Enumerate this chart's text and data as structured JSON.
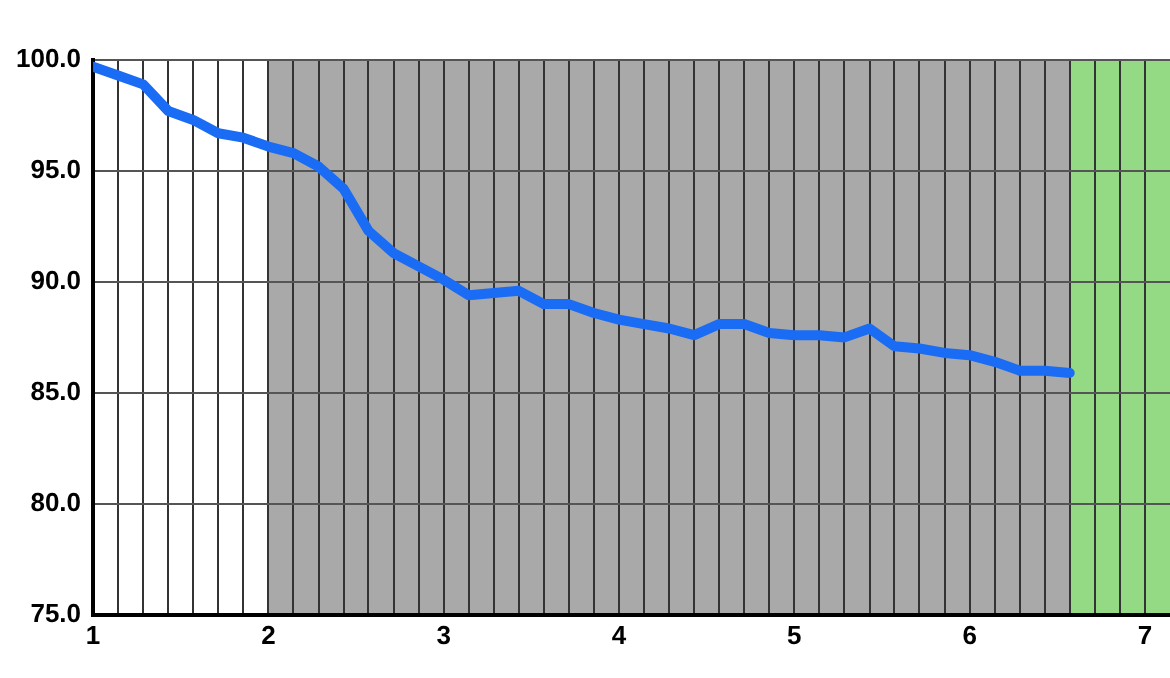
{
  "chart_data": {
    "type": "line",
    "x": [
      1,
      1.143,
      1.286,
      1.429,
      1.571,
      1.714,
      1.857,
      2,
      2.143,
      2.286,
      2.429,
      2.571,
      2.714,
      2.857,
      3,
      3.143,
      3.286,
      3.429,
      3.571,
      3.714,
      3.857,
      4,
      4.143,
      4.286,
      4.429,
      4.571,
      4.714,
      4.857,
      5,
      5.143,
      5.286,
      5.429,
      5.571,
      5.714,
      5.857,
      6,
      6.143,
      6.286,
      6.429,
      6.571
    ],
    "series": [
      {
        "color": "#1a6cf5",
        "values": [
          99.7,
          99.3,
          98.9,
          97.7,
          97.3,
          96.7,
          96.5,
          96.1,
          95.8,
          95.2,
          94.2,
          92.3,
          91.3,
          90.7,
          90.1,
          89.4,
          89.5,
          89.6,
          89.0,
          89.0,
          88.6,
          88.3,
          88.1,
          87.9,
          87.6,
          88.1,
          88.1,
          87.7,
          87.6,
          87.6,
          87.5,
          87.9,
          87.1,
          87.0,
          86.8,
          86.7,
          86.4,
          86.0,
          86.0,
          85.9
        ]
      }
    ],
    "xlim": [
      1,
      7.143
    ],
    "xticks": [
      1,
      {
        "value": 1.143,
        "label": null
      },
      {
        "value": 1.286,
        "label": null
      },
      {
        "value": 1.429,
        "label": null
      },
      {
        "value": 1.571,
        "label": null
      },
      {
        "value": 1.714,
        "label": null
      },
      {
        "value": 1.857,
        "label": null
      },
      2,
      {
        "value": 2.143,
        "label": null
      },
      {
        "value": 2.286,
        "label": null
      },
      {
        "value": 2.429,
        "label": null
      },
      {
        "value": 2.571,
        "label": null
      },
      {
        "value": 2.714,
        "label": null
      },
      {
        "value": 2.857,
        "label": null
      },
      3,
      {
        "value": 3.143,
        "label": null
      },
      {
        "value": 3.286,
        "label": null
      },
      {
        "value": 3.429,
        "label": null
      },
      {
        "value": 3.571,
        "label": null
      },
      {
        "value": 3.714,
        "label": null
      },
      {
        "value": 3.857,
        "label": null
      },
      4,
      {
        "value": 4.143,
        "label": null
      },
      {
        "value": 4.286,
        "label": null
      },
      {
        "value": 4.429,
        "label": null
      },
      {
        "value": 4.571,
        "label": null
      },
      {
        "value": 4.714,
        "label": null
      },
      {
        "value": 4.857,
        "label": null
      },
      5,
      {
        "value": 5.143,
        "label": null
      },
      {
        "value": 5.286,
        "label": null
      },
      {
        "value": 5.429,
        "label": null
      },
      {
        "value": 5.571,
        "label": null
      },
      {
        "value": 5.714,
        "label": null
      },
      {
        "value": 5.857,
        "label": null
      },
      6,
      {
        "value": 6.143,
        "label": null
      },
      {
        "value": 6.286,
        "label": null
      },
      {
        "value": 6.429,
        "label": null
      },
      {
        "value": 6.571,
        "label": null
      },
      {
        "value": 6.714,
        "label": null
      },
      {
        "value": 6.857,
        "label": null
      },
      7
    ],
    "ylim": [
      75,
      100
    ],
    "yticks": [
      {
        "value": 75,
        "label": "75.0"
      },
      {
        "value": 80,
        "label": "80.0"
      },
      {
        "value": 85,
        "label": "85.0"
      },
      {
        "value": 90,
        "label": "90.0"
      },
      {
        "value": 95,
        "label": "95.0"
      },
      {
        "value": 100,
        "label": "100.0"
      }
    ],
    "bands": [
      {
        "axis": "x",
        "from": 2,
        "to": 6.571,
        "color": "#a9a9a9"
      },
      {
        "axis": "x",
        "from": 6.571,
        "to": 7.143,
        "color": "#94d983"
      }
    ],
    "grid": true,
    "legend": false,
    "marker": "none",
    "line_style": "solid"
  }
}
